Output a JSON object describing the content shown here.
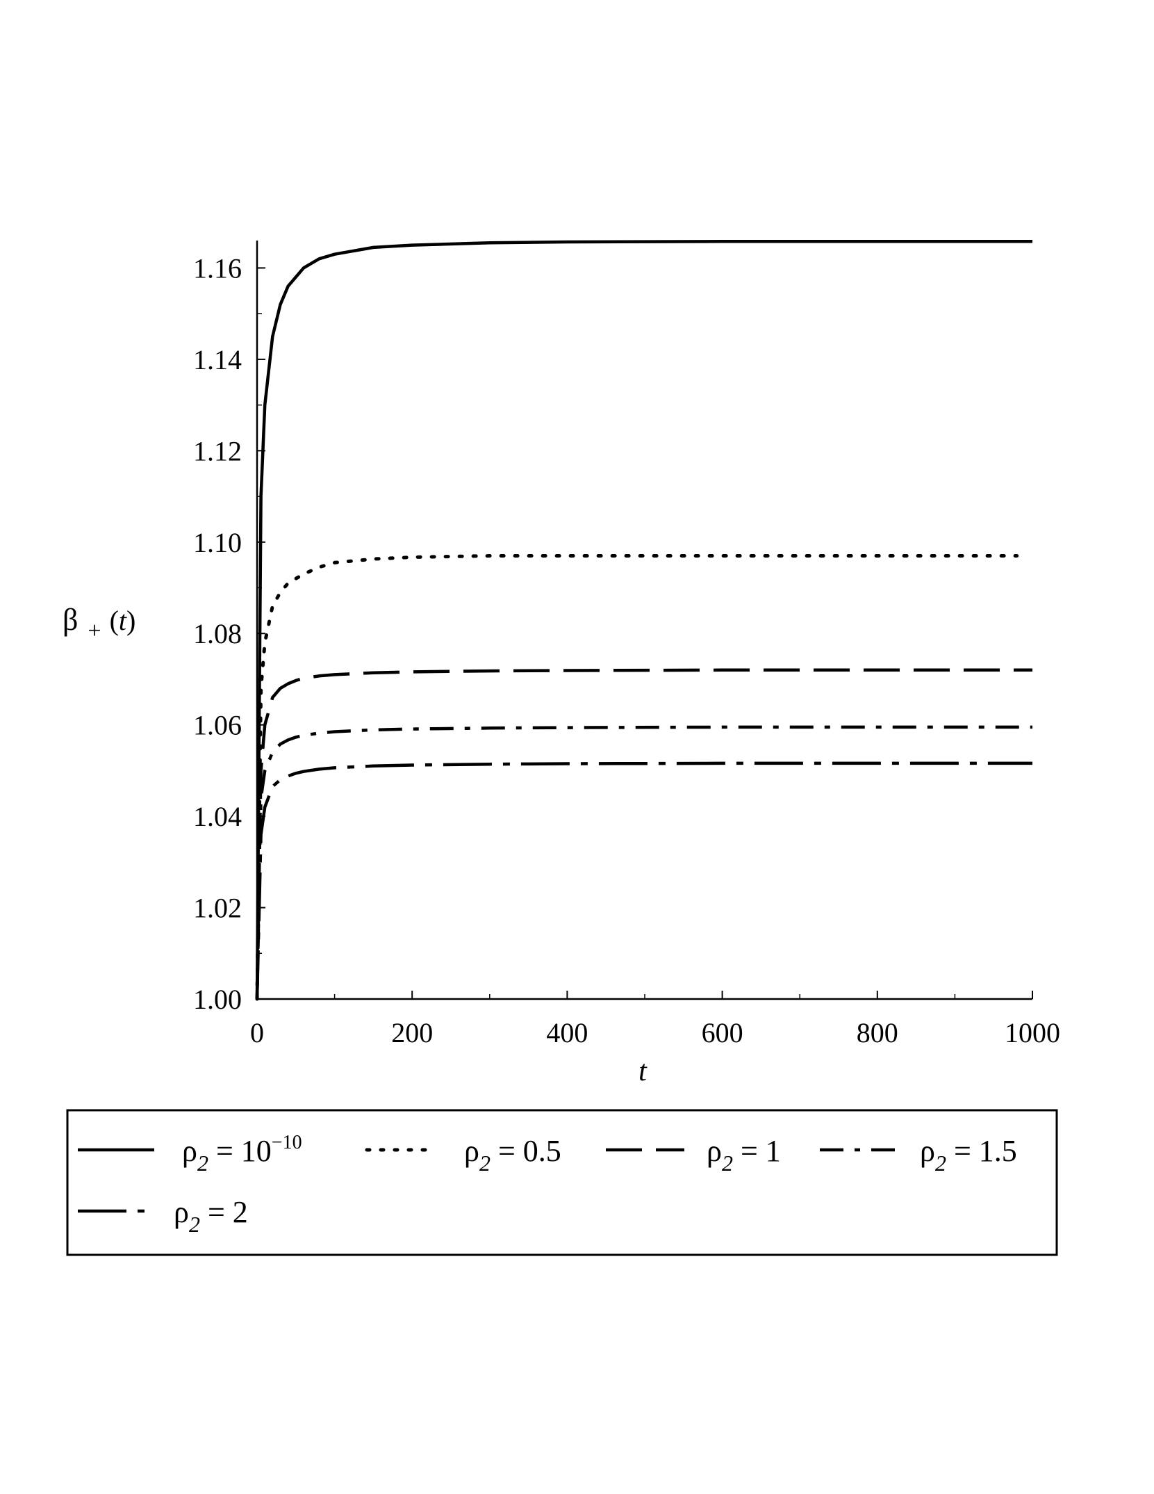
{
  "chart_data": {
    "type": "line",
    "xlabel": "t",
    "ylabel": "β₊(t)",
    "ylabel_parts": {
      "base": "β",
      "sub": "+",
      "arg": "t"
    },
    "xlim": [
      0,
      1000
    ],
    "ylim": [
      1.0,
      1.166
    ],
    "xticks": [
      "0",
      "200",
      "400",
      "600",
      "800",
      "1000"
    ],
    "xtick_values": [
      0,
      200,
      400,
      600,
      800,
      1000
    ],
    "yticks": [
      "1.00",
      "1.02",
      "1.04",
      "1.06",
      "1.08",
      "1.10",
      "1.12",
      "1.14",
      "1.16"
    ],
    "ytick_values": [
      1.0,
      1.02,
      1.04,
      1.06,
      1.08,
      1.1,
      1.12,
      1.14,
      1.16
    ],
    "grid": false,
    "legend_position": "bottom",
    "series": [
      {
        "name": "ρ2 = 10^-10",
        "legend": {
          "symbol": "ρ",
          "sub": "2",
          "eq": " = 10",
          "sup": "−10"
        },
        "dash": "solid",
        "x": [
          0,
          5,
          10,
          20,
          30,
          40,
          50,
          60,
          80,
          100,
          150,
          200,
          300,
          400,
          600,
          800,
          1000
        ],
        "y": [
          1.0,
          1.11,
          1.13,
          1.145,
          1.152,
          1.156,
          1.158,
          1.16,
          1.162,
          1.163,
          1.1645,
          1.165,
          1.1655,
          1.1657,
          1.1658,
          1.1658,
          1.1658
        ]
      },
      {
        "name": "ρ2 = 0.5",
        "legend": {
          "symbol": "ρ",
          "sub": "2",
          "eq": " = 0.5",
          "sup": ""
        },
        "dash": "dotted",
        "x": [
          0,
          5,
          10,
          20,
          30,
          40,
          50,
          60,
          80,
          100,
          150,
          200,
          300,
          400,
          600,
          800,
          980
        ],
        "y": [
          1.0,
          1.068,
          1.078,
          1.086,
          1.089,
          1.091,
          1.092,
          1.093,
          1.0945,
          1.0955,
          1.0963,
          1.0967,
          1.097,
          1.097,
          1.097,
          1.097,
          1.097
        ]
      },
      {
        "name": "ρ2 = 1",
        "legend": {
          "symbol": "ρ",
          "sub": "2",
          "eq": " = 1",
          "sup": ""
        },
        "dash": "longdash",
        "x": [
          0,
          5,
          10,
          20,
          30,
          40,
          50,
          60,
          80,
          100,
          150,
          200,
          300,
          400,
          600,
          800,
          1000
        ],
        "y": [
          1.0,
          1.05,
          1.06,
          1.066,
          1.068,
          1.069,
          1.0697,
          1.0702,
          1.0707,
          1.071,
          1.0714,
          1.0716,
          1.0718,
          1.0719,
          1.072,
          1.072,
          1.072
        ]
      },
      {
        "name": "ρ2 = 1.5",
        "legend": {
          "symbol": "ρ",
          "sub": "2",
          "eq": " = 1.5",
          "sup": ""
        },
        "dash": "dashdot",
        "x": [
          0,
          5,
          10,
          20,
          30,
          40,
          50,
          60,
          80,
          100,
          150,
          200,
          300,
          400,
          600,
          800,
          1000
        ],
        "y": [
          1.0,
          1.044,
          1.05,
          1.054,
          1.0558,
          1.0567,
          1.0573,
          1.0577,
          1.0582,
          1.0585,
          1.0589,
          1.0591,
          1.0593,
          1.0594,
          1.0595,
          1.0595,
          1.0595
        ]
      },
      {
        "name": "ρ2 = 2",
        "legend": {
          "symbol": "ρ",
          "sub": "2",
          "eq": " = 2",
          "sup": ""
        },
        "dash": "longdashdot",
        "x": [
          0,
          5,
          10,
          20,
          30,
          40,
          50,
          60,
          80,
          100,
          150,
          200,
          300,
          400,
          600,
          800,
          1000
        ],
        "y": [
          1.0,
          1.036,
          1.042,
          1.0465,
          1.048,
          1.0488,
          1.0494,
          1.0498,
          1.0503,
          1.0506,
          1.051,
          1.0512,
          1.0514,
          1.0515,
          1.0516,
          1.0516,
          1.0516
        ]
      }
    ]
  }
}
